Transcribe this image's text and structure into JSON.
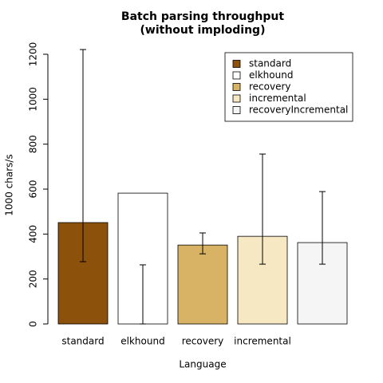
{
  "chart_data": {
    "type": "bar",
    "title": "Batch parsing throughput",
    "subtitle": "(without imploding)",
    "x_label": "Language",
    "y_label": "1000 chars/s",
    "categories": [
      "standard",
      "elkhound",
      "recovery",
      "incremental",
      null
    ],
    "values": [
      451,
      582,
      351,
      390,
      362
    ],
    "error_lower": [
      277,
      0,
      312,
      266,
      266
    ],
    "error_upper": [
      1221,
      263,
      405,
      756,
      589
    ],
    "colors": [
      "#8c510a",
      "#ffffff",
      "#d8b365",
      "#f6e8c3",
      "#f5f5f5"
    ],
    "legend_labels": [
      "standard",
      "elkhound",
      "recovery",
      "incremental",
      "recoveryIncremental"
    ],
    "legend_position": "top-right",
    "ylim": [
      0,
      1200
    ],
    "yticks": [
      0,
      200,
      400,
      600,
      800,
      1000,
      1200
    ]
  }
}
